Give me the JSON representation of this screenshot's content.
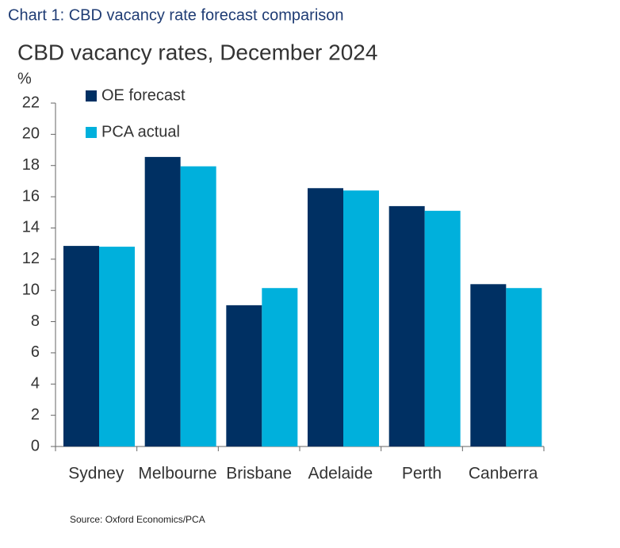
{
  "header": "Chart 1: CBD vacancy rate forecast comparison",
  "chart_data": {
    "type": "bar",
    "title": "CBD vacancy rates, December 2024",
    "y_label": "%",
    "categories": [
      "Sydney",
      "Melbourne",
      "Brisbane",
      "Adelaide",
      "Perth",
      "Canberra"
    ],
    "series": [
      {
        "name": "OE forecast",
        "color": "#003063",
        "values": [
          12.85,
          18.55,
          9.05,
          16.55,
          15.4,
          10.4
        ]
      },
      {
        "name": "PCA actual",
        "color": "#00b0dc",
        "values": [
          12.8,
          17.95,
          10.15,
          16.4,
          15.1,
          10.15
        ]
      }
    ],
    "ylim": [
      0,
      22
    ],
    "yticks": [
      0,
      2,
      4,
      6,
      8,
      10,
      12,
      14,
      16,
      18,
      20,
      22
    ],
    "grid": false,
    "legend": "upper left"
  },
  "source": "Source: Oxford Economics/PCA"
}
